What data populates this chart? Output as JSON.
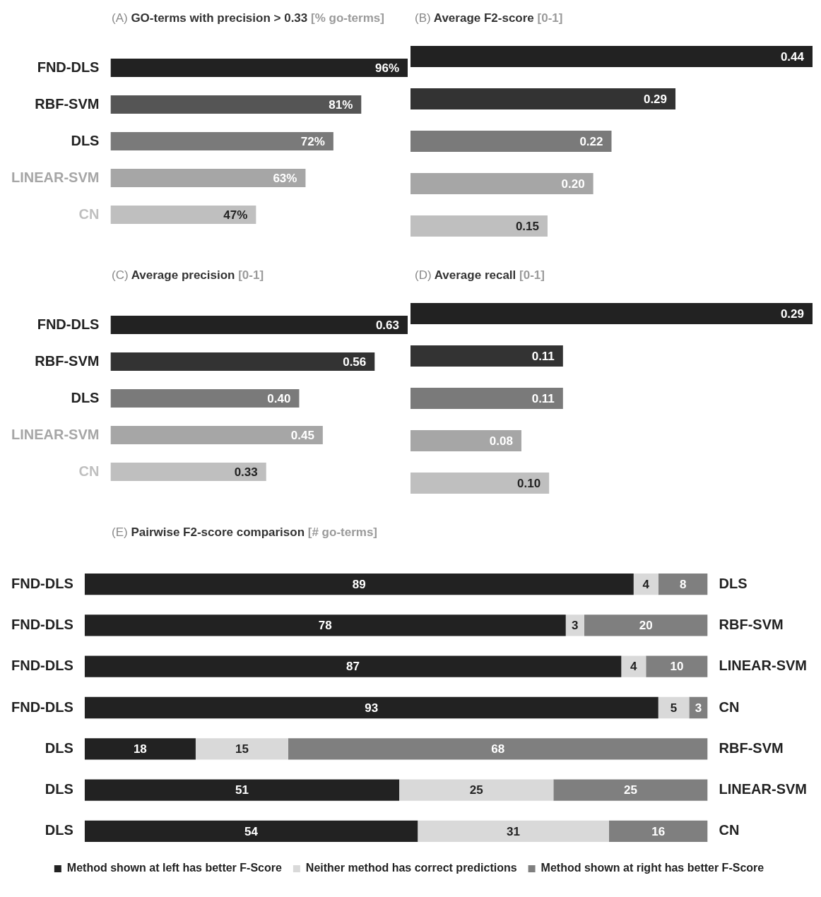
{
  "chart_data": [
    {
      "type": "bar",
      "orientation": "horizontal",
      "title": "(A) GO-terms with precision > 0.33 [% go-terms]",
      "categories": [
        "FND-DLS",
        "RBF-SVM",
        "DLS",
        "LINEAR-SVM",
        "CN"
      ],
      "values": [
        96,
        81,
        72,
        63,
        47
      ],
      "colors": [
        "#222222",
        "#555555",
        "#7a7a7a",
        "#a6a6a6",
        "#bfbfbf"
      ],
      "value_labels": [
        "96%",
        "81%",
        "72%",
        "63%",
        "47%"
      ],
      "tick_labels": "y",
      "grid": false,
      "legend": false
    },
    {
      "type": "bar",
      "orientation": "horizontal",
      "title": "(B) Average F2-score [0-1]",
      "categories": [
        null,
        null,
        null,
        null,
        null
      ],
      "values": [
        0.44,
        0.29,
        0.22,
        0.2,
        0.15
      ],
      "colors": [
        "#222222",
        "#333333",
        "#7a7a7a",
        "#a6a6a6",
        "#bfbfbf"
      ],
      "value_labels": [
        "0.44",
        "0.29",
        "0.22",
        "0.20",
        "0.15"
      ],
      "tick_labels": false,
      "grid": false,
      "legend": false
    },
    {
      "type": "bar",
      "orientation": "horizontal",
      "title": "(C) Average precision [0-1]",
      "categories": [
        "FND-DLS",
        "RBF-SVM",
        "DLS",
        "LINEAR-SVM",
        "CN"
      ],
      "values": [
        0.63,
        0.56,
        0.4,
        0.45,
        0.33
      ],
      "colors": [
        "#222222",
        "#333333",
        "#7a7a7a",
        "#a6a6a6",
        "#bfbfbf"
      ],
      "value_labels": [
        "0.63",
        "0.56",
        "0.40",
        "0.45",
        "0.33"
      ],
      "tick_labels": "y",
      "grid": false,
      "legend": false
    },
    {
      "type": "bar",
      "orientation": "horizontal",
      "title": "(D) Average recall [0-1]",
      "categories": [
        null,
        null,
        null,
        null,
        null
      ],
      "values": [
        0.29,
        0.11,
        0.11,
        0.08,
        0.1
      ],
      "colors": [
        "#222222",
        "#333333",
        "#7a7a7a",
        "#a6a6a6",
        "#bfbfbf"
      ],
      "value_labels": [
        "0.29",
        "0.11",
        "0.11",
        "0.08",
        "0.10"
      ],
      "tick_labels": false,
      "grid": false,
      "legend": false
    },
    {
      "type": "bar",
      "orientation": "horizontal",
      "stacked": true,
      "title": "(E) Pairwise F2-score comparison [# go-terms]",
      "categories": [
        "FND-DLS",
        "FND-DLS",
        "FND-DLS",
        "FND-DLS",
        "DLS",
        "DLS",
        "DLS"
      ],
      "y2_categories": [
        "DLS",
        "RBF-SVM",
        "LINEAR-SVM",
        "CN",
        "RBF-SVM",
        "LINEAR-SVM",
        "CN"
      ],
      "series": [
        {
          "name": "Method shown at left has better F-Score",
          "color": "#222222",
          "values": [
            89,
            78,
            87,
            93,
            18,
            51,
            54
          ]
        },
        {
          "name": "Neither method has correct predictions",
          "color": "#d9d9d9",
          "values": [
            4,
            3,
            4,
            5,
            15,
            25,
            31
          ]
        },
        {
          "name": "Method shown at right has better F-Score",
          "color": "#7f7f7f",
          "values": [
            8,
            20,
            10,
            3,
            68,
            25,
            16
          ]
        }
      ],
      "data_labels": true,
      "tick_labels": "y",
      "grid": false,
      "legend": "bottom"
    }
  ]
}
